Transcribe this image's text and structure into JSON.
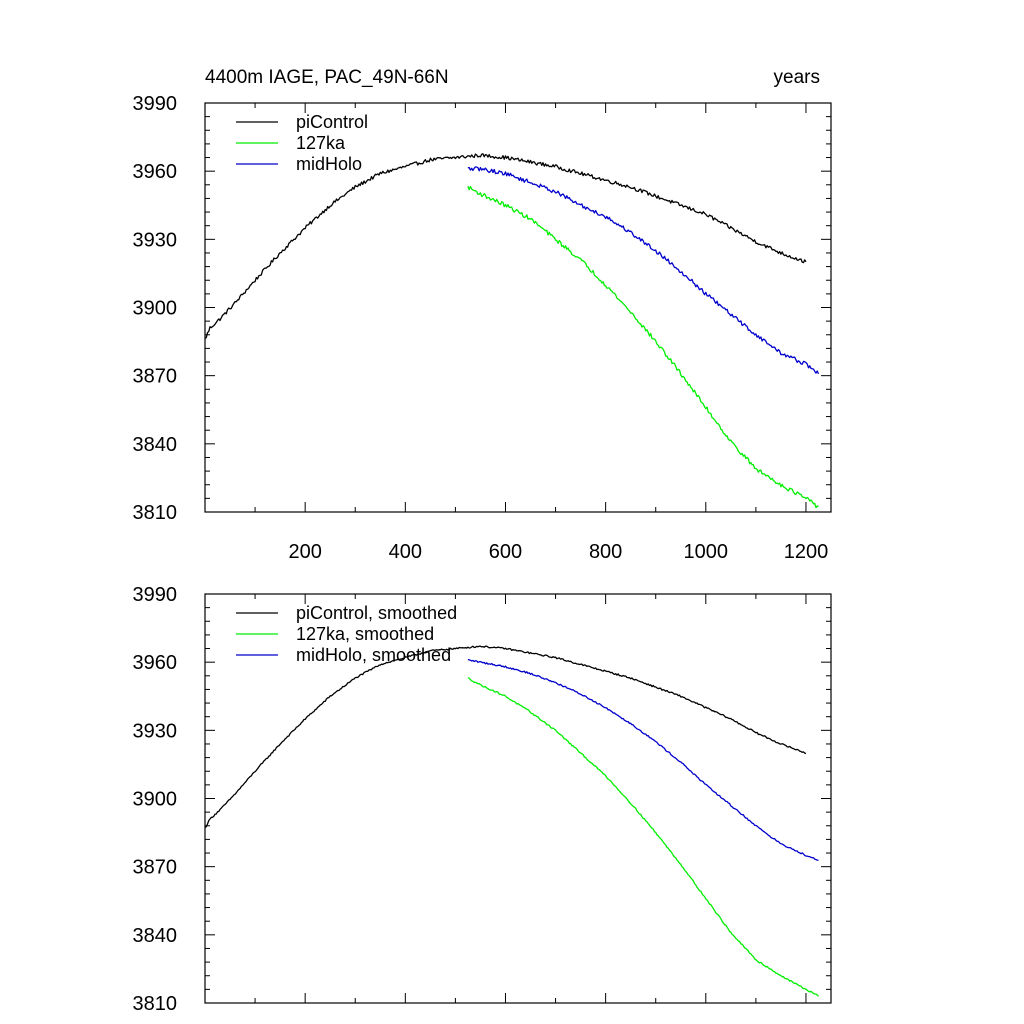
{
  "figure": {
    "title_left": "4400m IAGE, PAC_49N-66N",
    "title_right": "years"
  },
  "colors": {
    "piControl": "#000000",
    "127ka": "#00ee00",
    "midHolo": "#0000cc"
  },
  "chart_data": [
    {
      "type": "line",
      "panel": "top",
      "xlim": [
        0,
        1250
      ],
      "ylim": [
        3810,
        3990
      ],
      "x_major_ticks": [
        200,
        400,
        600,
        800,
        1000,
        1200
      ],
      "x_minor_ticks": [
        100,
        300,
        500,
        700,
        900,
        1100
      ],
      "y_major_ticks": [
        3810,
        3840,
        3870,
        3900,
        3930,
        3960,
        3990
      ],
      "y_tick_labels": [
        "3810",
        "3840",
        "3870",
        "3900",
        "3930",
        "3960",
        "3990"
      ],
      "x_tick_labels": [
        "200",
        "400",
        "600",
        "800",
        "1000",
        "1200"
      ],
      "legend_position": "top-left",
      "series": [
        {
          "name": "piControl",
          "color_key": "piControl",
          "noise": 0.8,
          "points": [
            [
              0,
              3886
            ],
            [
              10,
              3891
            ],
            [
              30,
              3895
            ],
            [
              60,
              3902
            ],
            [
              100,
              3912
            ],
            [
              150,
              3924
            ],
            [
              200,
              3935
            ],
            [
              250,
              3945
            ],
            [
              300,
              3953
            ],
            [
              350,
              3959
            ],
            [
              400,
              3962
            ],
            [
              450,
              3965
            ],
            [
              500,
              3966
            ],
            [
              550,
              3967
            ],
            [
              600,
              3966
            ],
            [
              650,
              3964
            ],
            [
              700,
              3962
            ],
            [
              750,
              3959
            ],
            [
              800,
              3956
            ],
            [
              850,
              3953
            ],
            [
              900,
              3949
            ],
            [
              950,
              3945
            ],
            [
              1000,
              3941
            ],
            [
              1050,
              3935
            ],
            [
              1100,
              3929
            ],
            [
              1150,
              3924
            ],
            [
              1200,
              3920
            ]
          ]
        },
        {
          "name": "127ka",
          "color_key": "127ka",
          "noise": 0.9,
          "points": [
            [
              525,
              3953
            ],
            [
              550,
              3950
            ],
            [
              600,
              3945
            ],
            [
              650,
              3939
            ],
            [
              700,
              3930
            ],
            [
              750,
              3921
            ],
            [
              800,
              3910
            ],
            [
              850,
              3898
            ],
            [
              900,
              3885
            ],
            [
              950,
              3871
            ],
            [
              1000,
              3856
            ],
            [
              1050,
              3841
            ],
            [
              1100,
              3829
            ],
            [
              1150,
              3822
            ],
            [
              1200,
              3816
            ],
            [
              1225,
              3812
            ]
          ]
        },
        {
          "name": "midHolo",
          "color_key": "midHolo",
          "noise": 0.9,
          "points": [
            [
              525,
              3961
            ],
            [
              550,
              3961
            ],
            [
              600,
              3959
            ],
            [
              650,
              3955
            ],
            [
              700,
              3951
            ],
            [
              750,
              3945
            ],
            [
              800,
              3940
            ],
            [
              850,
              3933
            ],
            [
              900,
              3925
            ],
            [
              950,
              3916
            ],
            [
              1000,
              3906
            ],
            [
              1050,
              3897
            ],
            [
              1100,
              3888
            ],
            [
              1150,
              3880
            ],
            [
              1200,
              3875
            ],
            [
              1225,
              3871
            ]
          ]
        }
      ]
    },
    {
      "type": "line",
      "panel": "bottom",
      "xlim": [
        0,
        1250
      ],
      "ylim": [
        3810,
        3990
      ],
      "x_major_ticks": [
        200,
        400,
        600,
        800,
        1000,
        1200
      ],
      "x_minor_ticks": [
        100,
        300,
        500,
        700,
        900,
        1100
      ],
      "y_major_ticks": [
        3810,
        3840,
        3870,
        3900,
        3930,
        3960,
        3990
      ],
      "y_tick_labels": [
        "3810",
        "3840",
        "3870",
        "3900",
        "3930",
        "3960",
        "3990"
      ],
      "legend_position": "top-left",
      "series": [
        {
          "name": "piControl, smoothed",
          "color_key": "piControl",
          "noise": 0.35,
          "points": [
            [
              0,
              3887
            ],
            [
              10,
              3891
            ],
            [
              30,
              3895
            ],
            [
              60,
              3902
            ],
            [
              100,
              3912
            ],
            [
              150,
              3924
            ],
            [
              200,
              3935
            ],
            [
              250,
              3945
            ],
            [
              300,
              3953
            ],
            [
              350,
              3959
            ],
            [
              400,
              3962
            ],
            [
              450,
              3965
            ],
            [
              500,
              3966
            ],
            [
              550,
              3967
            ],
            [
              600,
              3966
            ],
            [
              650,
              3964
            ],
            [
              700,
              3962
            ],
            [
              750,
              3959
            ],
            [
              800,
              3956
            ],
            [
              850,
              3953
            ],
            [
              900,
              3949
            ],
            [
              950,
              3945
            ],
            [
              1000,
              3940
            ],
            [
              1050,
              3935
            ],
            [
              1100,
              3929
            ],
            [
              1150,
              3924
            ],
            [
              1200,
              3920
            ]
          ]
        },
        {
          "name": "127ka, smoothed",
          "color_key": "127ka",
          "noise": 0.35,
          "points": [
            [
              525,
              3953
            ],
            [
              550,
              3950
            ],
            [
              600,
              3945
            ],
            [
              650,
              3938
            ],
            [
              700,
              3930
            ],
            [
              750,
              3920
            ],
            [
              800,
              3910
            ],
            [
              850,
              3898
            ],
            [
              900,
              3885
            ],
            [
              950,
              3871
            ],
            [
              1000,
              3856
            ],
            [
              1050,
              3841
            ],
            [
              1100,
              3829
            ],
            [
              1150,
              3822
            ],
            [
              1200,
              3816
            ],
            [
              1225,
              3813
            ]
          ]
        },
        {
          "name": "midHolo, smoothed",
          "color_key": "midHolo",
          "noise": 0.35,
          "points": [
            [
              525,
              3961
            ],
            [
              550,
              3960
            ],
            [
              600,
              3958
            ],
            [
              650,
              3955
            ],
            [
              700,
              3951
            ],
            [
              750,
              3946
            ],
            [
              800,
              3940
            ],
            [
              850,
              3933
            ],
            [
              900,
              3925
            ],
            [
              950,
              3916
            ],
            [
              1000,
              3906
            ],
            [
              1050,
              3897
            ],
            [
              1100,
              3888
            ],
            [
              1150,
              3880
            ],
            [
              1200,
              3875
            ],
            [
              1225,
              3873
            ]
          ]
        }
      ]
    }
  ]
}
